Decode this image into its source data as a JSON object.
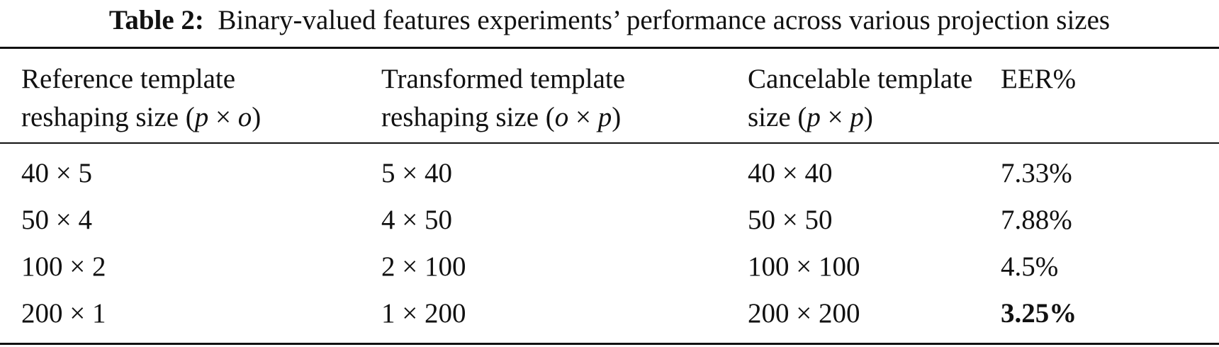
{
  "caption": {
    "label": "Table 2:",
    "text": "Binary-valued features experiments’ performance across various projection sizes"
  },
  "table": {
    "headers": [
      {
        "line1": "Reference template",
        "line2": "reshaping size (p × o)"
      },
      {
        "line1": "Transformed template",
        "line2": "reshaping size (o × p)"
      },
      {
        "line1": "Cancelable template",
        "line2": "size (p × p)"
      },
      {
        "line1": "EER%",
        "line2": ""
      }
    ],
    "rows": [
      {
        "reference": "40 × 5",
        "transformed": "5 × 40",
        "cancelable": "40 × 40",
        "eer": "7.33%"
      },
      {
        "reference": "50 × 4",
        "transformed": "4 × 50",
        "cancelable": "50 × 50",
        "eer": "7.88%"
      },
      {
        "reference": "100 × 2",
        "transformed": "2 × 100",
        "cancelable": "100 × 100",
        "eer": "4.5%"
      },
      {
        "reference": "200 × 1",
        "transformed": "1 × 200",
        "cancelable": "200 × 200",
        "eer": "3.25%",
        "eer_bold": true
      }
    ]
  }
}
